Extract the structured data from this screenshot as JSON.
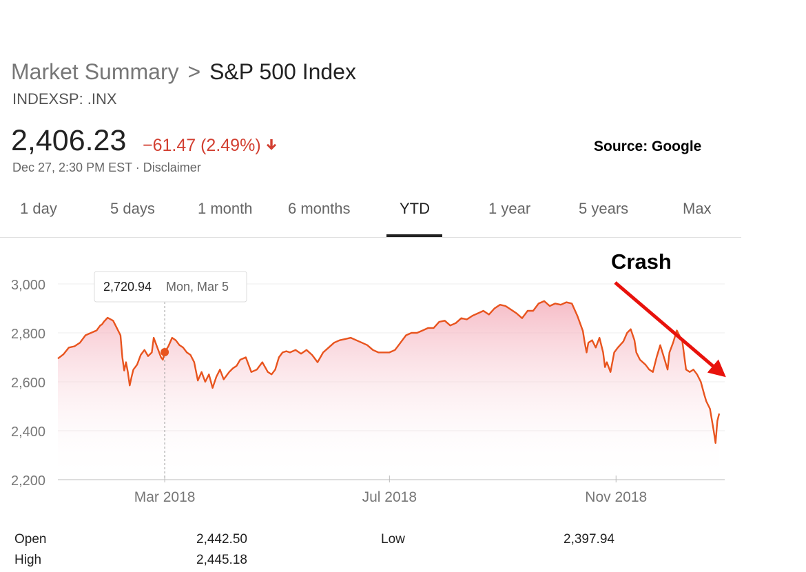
{
  "header": {
    "breadcrumb_parent": "Market Summary",
    "breadcrumb_sep": ">",
    "breadcrumb_current": "S&P 500 Index",
    "ticker": "INDEXSP: .INX"
  },
  "quote": {
    "price": "2,406.23",
    "change": "−61.47 (2.49%)",
    "timestamp": "Dec 27, 2:30 PM EST · Disclaimer"
  },
  "source_note": "Source: Google",
  "tabs": [
    {
      "label": "1 day"
    },
    {
      "label": "5 days"
    },
    {
      "label": "1 month"
    },
    {
      "label": "6 months"
    },
    {
      "label": "YTD",
      "active": true
    },
    {
      "label": "1 year"
    },
    {
      "label": "5 years"
    },
    {
      "label": "Max"
    }
  ],
  "annotation": {
    "label": "Crash",
    "arrow_color": "#e8120c"
  },
  "tooltip": {
    "value": "2,720.94",
    "date": "Mon, Mar 5"
  },
  "colors": {
    "line": "#e8541e",
    "fill_top": "#f3a7b5",
    "down": "#d23f31"
  },
  "chart_data": {
    "type": "area",
    "title": "S&P 500 Index YTD",
    "ylim": [
      2200,
      3000
    ],
    "yticks": [
      3000,
      2800,
      2600,
      2400,
      2200
    ],
    "ytick_labels": [
      "3,000",
      "2,800",
      "2,600",
      "2,400",
      "2,200"
    ],
    "xlabels": [
      {
        "label": "Mar 2018",
        "day": 59
      },
      {
        "label": "Jul 2018",
        "day": 181
      },
      {
        "label": "Nov 2018",
        "day": 304
      }
    ],
    "series": [
      {
        "name": "S&P 500",
        "x": [
          1,
          4,
          7,
          10,
          13,
          16,
          19,
          22,
          24,
          25,
          26,
          28,
          31,
          33,
          35,
          36,
          37,
          38,
          39,
          40,
          41,
          42,
          44,
          46,
          48,
          50,
          52,
          53,
          55,
          57,
          58,
          59,
          61,
          63,
          65,
          67,
          69,
          71,
          73,
          75,
          77,
          79,
          81,
          83,
          85,
          87,
          89,
          91,
          94,
          96,
          98,
          100,
          103,
          106,
          109,
          112,
          115,
          117,
          119,
          121,
          123,
          125,
          127,
          130,
          133,
          136,
          139,
          142,
          145,
          148,
          151,
          154,
          157,
          160,
          163,
          166,
          169,
          172,
          175,
          178,
          181,
          184,
          187,
          190,
          193,
          196,
          199,
          202,
          205,
          208,
          211,
          214,
          217,
          220,
          223,
          226,
          229,
          232,
          235,
          238,
          241,
          244,
          247,
          250,
          253,
          256,
          259,
          262,
          265,
          268,
          271,
          274,
          277,
          280,
          283,
          286,
          287,
          288,
          289,
          291,
          293,
          295,
          297,
          298,
          299,
          301,
          303,
          305,
          308,
          310,
          312,
          314,
          315,
          317,
          320,
          322,
          324,
          326,
          328,
          330,
          332,
          333,
          335,
          337,
          340,
          342,
          344,
          346,
          348,
          350,
          352,
          353,
          355,
          357,
          358,
          359,
          360
        ],
        "values": [
          2695,
          2712,
          2740,
          2745,
          2760,
          2790,
          2800,
          2810,
          2830,
          2835,
          2846,
          2862,
          2850,
          2820,
          2790,
          2700,
          2646,
          2680,
          2640,
          2585,
          2620,
          2650,
          2670,
          2710,
          2730,
          2705,
          2720,
          2780,
          2740,
          2700,
          2690,
          2721,
          2745,
          2780,
          2770,
          2750,
          2740,
          2720,
          2710,
          2680,
          2605,
          2640,
          2600,
          2630,
          2575,
          2620,
          2650,
          2610,
          2640,
          2655,
          2665,
          2690,
          2700,
          2640,
          2650,
          2680,
          2640,
          2630,
          2650,
          2700,
          2720,
          2725,
          2720,
          2730,
          2715,
          2730,
          2710,
          2680,
          2720,
          2740,
          2760,
          2770,
          2775,
          2780,
          2770,
          2760,
          2750,
          2730,
          2720,
          2720,
          2720,
          2730,
          2760,
          2790,
          2800,
          2800,
          2810,
          2820,
          2820,
          2845,
          2850,
          2830,
          2840,
          2860,
          2855,
          2870,
          2880,
          2890,
          2875,
          2900,
          2915,
          2910,
          2895,
          2880,
          2860,
          2890,
          2890,
          2920,
          2930,
          2910,
          2920,
          2915,
          2925,
          2920,
          2870,
          2808,
          2760,
          2720,
          2760,
          2770,
          2740,
          2780,
          2720,
          2660,
          2680,
          2640,
          2720,
          2740,
          2765,
          2800,
          2815,
          2770,
          2720,
          2690,
          2670,
          2650,
          2640,
          2700,
          2750,
          2700,
          2650,
          2720,
          2760,
          2810,
          2765,
          2650,
          2640,
          2650,
          2630,
          2600,
          2545,
          2520,
          2490,
          2400,
          2350,
          2440,
          2470
        ]
      }
    ]
  },
  "stats": [
    {
      "label": "Open",
      "value": "2,442.50"
    },
    {
      "label": "Low",
      "value": "2,397.94"
    },
    {
      "label": "High",
      "value": "2,445.18"
    }
  ]
}
